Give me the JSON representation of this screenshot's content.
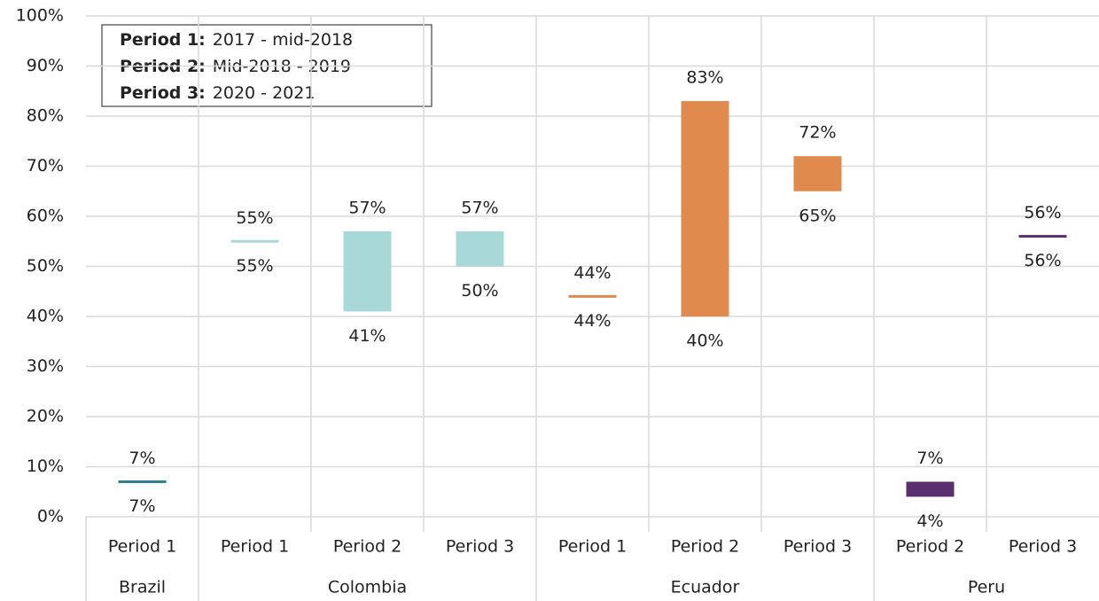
{
  "chart_data": {
    "type": "floating_bar",
    "ylim": [
      0,
      100
    ],
    "yticks": [
      {
        "value": 0,
        "label": "0%"
      },
      {
        "value": 10,
        "label": "10%"
      },
      {
        "value": 20,
        "label": "20%"
      },
      {
        "value": 30,
        "label": "30%"
      },
      {
        "value": 40,
        "label": "40%"
      },
      {
        "value": 50,
        "label": "50%"
      },
      {
        "value": 60,
        "label": "60%"
      },
      {
        "value": 70,
        "label": "70%"
      },
      {
        "value": 80,
        "label": "80%"
      },
      {
        "value": 90,
        "label": "90%"
      },
      {
        "value": 100,
        "label": "100%"
      }
    ],
    "grid": true,
    "notes": [
      {
        "label": "Period 1:",
        "text": "2017 - mid-2018"
      },
      {
        "label": "Period 2:",
        "text": "Mid-2018 - 2019"
      },
      {
        "label": "Period 3:",
        "text": "2020 - 2021"
      }
    ],
    "series": [
      {
        "name": "Brazil",
        "color": "#2e7d8f",
        "categories": [
          "Period 1"
        ],
        "low": [
          7
        ],
        "high": [
          7
        ],
        "low_labels": [
          "7%"
        ],
        "high_labels": [
          "7%"
        ]
      },
      {
        "name": "Colombia",
        "color": "#a8d9d8",
        "categories": [
          "Period 1",
          "Period 2",
          "Period 3"
        ],
        "low": [
          55,
          41,
          50
        ],
        "high": [
          55,
          57,
          57
        ],
        "low_labels": [
          "55%",
          "41%",
          "50%"
        ],
        "high_labels": [
          "55%",
          "57%",
          "57%"
        ]
      },
      {
        "name": "Ecuador",
        "color": "#e08a4e",
        "categories": [
          "Period 1",
          "Period 2",
          "Period 3"
        ],
        "low": [
          44,
          40,
          65
        ],
        "high": [
          44,
          83,
          72
        ],
        "low_labels": [
          "44%",
          "40%",
          "65%"
        ],
        "high_labels": [
          "44%",
          "83%",
          "72%"
        ]
      },
      {
        "name": "Peru",
        "color": "#5b2e6e",
        "categories": [
          "Period 2",
          "Period 3"
        ],
        "low": [
          4,
          56
        ],
        "high": [
          7,
          56
        ],
        "low_labels": [
          "4%",
          "56%"
        ],
        "high_labels": [
          "7%",
          "56%"
        ]
      }
    ]
  }
}
